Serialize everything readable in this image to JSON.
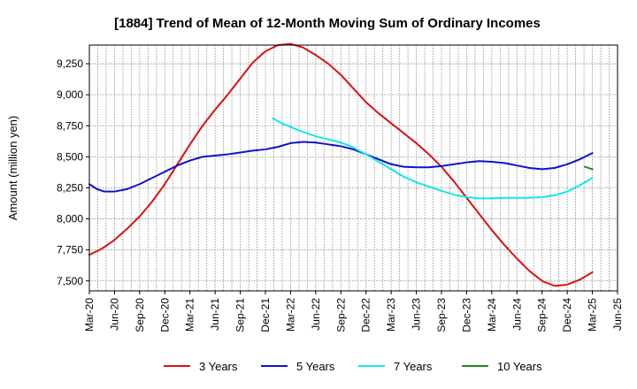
{
  "chart_data": {
    "type": "line",
    "title": "[1884]  Trend of Mean of 12-Month Moving Sum of Ordinary Incomes",
    "xlabel": "",
    "ylabel": "Amount (million yen)",
    "ylim": [
      7420,
      9400
    ],
    "yticks": [
      7500,
      7750,
      8000,
      8250,
      8500,
      8750,
      9000,
      9250
    ],
    "ytick_labels": [
      "7,500",
      "7,750",
      "8,000",
      "8,250",
      "8,500",
      "8,750",
      "9,000",
      "9,250"
    ],
    "xlim": [
      0,
      21
    ],
    "xtick_labels": [
      "Mar-20",
      "Jun-20",
      "Sep-20",
      "Dec-20",
      "Mar-21",
      "Jun-21",
      "Sep-21",
      "Dec-21",
      "Mar-22",
      "Jun-22",
      "Sep-22",
      "Dec-22",
      "Mar-23",
      "Jun-23",
      "Sep-23",
      "Dec-23",
      "Mar-24",
      "Jun-24",
      "Sep-24",
      "Dec-24",
      "Mar-25",
      "Jun-25"
    ],
    "grid": true,
    "legend_position": "bottom",
    "series": [
      {
        "name": "3 Years",
        "color": "#dd1111",
        "points": [
          [
            0,
            7710
          ],
          [
            0.5,
            7760
          ],
          [
            1,
            7830
          ],
          [
            1.5,
            7920
          ],
          [
            2,
            8020
          ],
          [
            2.5,
            8140
          ],
          [
            3,
            8280
          ],
          [
            3.5,
            8440
          ],
          [
            4,
            8600
          ],
          [
            4.5,
            8750
          ],
          [
            5,
            8880
          ],
          [
            5.5,
            9000
          ],
          [
            6,
            9130
          ],
          [
            6.5,
            9260
          ],
          [
            7,
            9350
          ],
          [
            7.5,
            9400
          ],
          [
            8,
            9410
          ],
          [
            8.5,
            9380
          ],
          [
            9,
            9320
          ],
          [
            9.5,
            9250
          ],
          [
            10,
            9160
          ],
          [
            10.5,
            9050
          ],
          [
            11,
            8940
          ],
          [
            11.5,
            8850
          ],
          [
            12,
            8770
          ],
          [
            12.5,
            8690
          ],
          [
            13,
            8610
          ],
          [
            13.5,
            8520
          ],
          [
            14,
            8420
          ],
          [
            14.5,
            8300
          ],
          [
            15,
            8170
          ],
          [
            15.5,
            8040
          ],
          [
            16,
            7910
          ],
          [
            16.5,
            7790
          ],
          [
            17,
            7680
          ],
          [
            17.5,
            7580
          ],
          [
            18,
            7500
          ],
          [
            18.5,
            7460
          ],
          [
            19,
            7470
          ],
          [
            19.5,
            7510
          ],
          [
            20,
            7570
          ]
        ]
      },
      {
        "name": "5 Years",
        "color": "#1111cc",
        "points": [
          [
            0,
            8280
          ],
          [
            0.3,
            8240
          ],
          [
            0.6,
            8220
          ],
          [
            1,
            8220
          ],
          [
            1.5,
            8240
          ],
          [
            2,
            8280
          ],
          [
            2.5,
            8330
          ],
          [
            3,
            8380
          ],
          [
            3.5,
            8430
          ],
          [
            4,
            8470
          ],
          [
            4.5,
            8500
          ],
          [
            5,
            8510
          ],
          [
            5.5,
            8520
          ],
          [
            6,
            8535
          ],
          [
            6.5,
            8550
          ],
          [
            7,
            8560
          ],
          [
            7.5,
            8580
          ],
          [
            8,
            8610
          ],
          [
            8.5,
            8620
          ],
          [
            9,
            8615
          ],
          [
            9.5,
            8600
          ],
          [
            10,
            8585
          ],
          [
            10.5,
            8560
          ],
          [
            11,
            8520
          ],
          [
            11.5,
            8480
          ],
          [
            12,
            8440
          ],
          [
            12.5,
            8420
          ],
          [
            13,
            8415
          ],
          [
            13.5,
            8415
          ],
          [
            14,
            8425
          ],
          [
            14.5,
            8440
          ],
          [
            15,
            8455
          ],
          [
            15.5,
            8465
          ],
          [
            16,
            8460
          ],
          [
            16.5,
            8450
          ],
          [
            17,
            8430
          ],
          [
            17.5,
            8410
          ],
          [
            18,
            8400
          ],
          [
            18.5,
            8410
          ],
          [
            19,
            8440
          ],
          [
            19.5,
            8480
          ],
          [
            20,
            8530
          ]
        ]
      },
      {
        "name": "7 Years",
        "color": "#11e8e8",
        "points": [
          [
            7.3,
            8810
          ],
          [
            7.6,
            8775
          ],
          [
            8,
            8740
          ],
          [
            8.5,
            8700
          ],
          [
            9,
            8665
          ],
          [
            9.5,
            8640
          ],
          [
            10,
            8615
          ],
          [
            10.5,
            8575
          ],
          [
            11,
            8520
          ],
          [
            11.5,
            8460
          ],
          [
            12,
            8400
          ],
          [
            12.5,
            8340
          ],
          [
            13,
            8295
          ],
          [
            13.5,
            8260
          ],
          [
            14,
            8225
          ],
          [
            14.5,
            8195
          ],
          [
            15,
            8175
          ],
          [
            15.5,
            8165
          ],
          [
            16,
            8165
          ],
          [
            16.5,
            8170
          ],
          [
            17,
            8170
          ],
          [
            17.5,
            8170
          ],
          [
            18,
            8175
          ],
          [
            18.5,
            8190
          ],
          [
            19,
            8220
          ],
          [
            19.5,
            8270
          ],
          [
            20,
            8330
          ]
        ]
      },
      {
        "name": "10 Years",
        "color": "#228b22",
        "points": [
          [
            19.7,
            8420
          ],
          [
            20,
            8400
          ]
        ]
      }
    ]
  }
}
